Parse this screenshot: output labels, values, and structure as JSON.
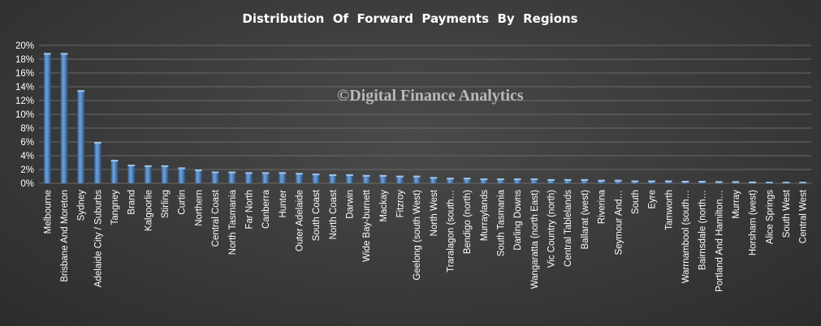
{
  "chart_data": {
    "type": "bar",
    "title": "Distribution  Of  Forward  Payments  By  Regions",
    "watermark": "©Digital Finance Analytics",
    "xlabel": "",
    "ylabel": "",
    "ylim": [
      0,
      20
    ],
    "yticks": [
      0,
      2,
      4,
      6,
      8,
      10,
      12,
      14,
      16,
      18,
      20
    ],
    "ytick_labels": [
      "0%",
      "2%",
      "4%",
      "6%",
      "8%",
      "10%",
      "12%",
      "14%",
      "16%",
      "18%",
      "20%"
    ],
    "grid": true,
    "legend": "none",
    "bar_color": "#4f81bd",
    "categories": [
      "Melbourne",
      "Brisbane And Moreton",
      "Sydney",
      "Adelaide City / Suburbs",
      "Tangney",
      "Brand",
      "Kalgoorlie",
      "Stirling",
      "Curtin",
      "Northern",
      "Central Coast",
      "North Tasmania",
      "Far North",
      "Canberra",
      "Hunter",
      "Outer Adelaide",
      "South Coast",
      "North Coast",
      "Darwin",
      "Wide Bay-burnett",
      "Mackay",
      "Fitzroy",
      "Geelong (south West)",
      "North West",
      "Traralagon (south…",
      "Bendigo (north)",
      "Murraylands",
      "South Tasmania",
      "Darling Downs",
      "Wangaratta (north East)",
      "Vic Country (north)",
      "Central Tablelands",
      "Ballarat (west)",
      "Riverina",
      "Seymour And…",
      "South",
      "Eyre",
      "Tamworth",
      "Warrnambool (south…",
      "Bairnsdale (north…",
      "Portland And Hamilton…",
      "Murray",
      "Horsham (west)",
      "Alice Springs",
      "South West",
      "Central West"
    ],
    "values": [
      18.9,
      18.9,
      13.5,
      6.0,
      3.4,
      2.7,
      2.6,
      2.6,
      2.3,
      2.0,
      1.7,
      1.7,
      1.6,
      1.6,
      1.6,
      1.5,
      1.4,
      1.3,
      1.3,
      1.2,
      1.2,
      1.1,
      1.1,
      0.9,
      0.8,
      0.8,
      0.7,
      0.7,
      0.7,
      0.7,
      0.6,
      0.6,
      0.6,
      0.5,
      0.5,
      0.4,
      0.4,
      0.4,
      0.35,
      0.35,
      0.3,
      0.3,
      0.25,
      0.2,
      0.2,
      0.2
    ]
  }
}
